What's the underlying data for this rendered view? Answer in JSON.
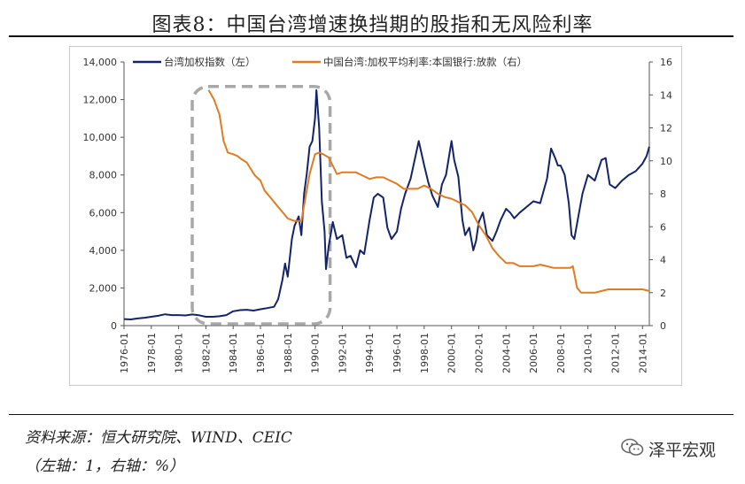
{
  "title": "图表8：中国台湾增速换挡期的股指和无风险利率",
  "source": "资料来源：恒大研究院、WIND、CEIC",
  "note": "（左轴：1，右轴：%）",
  "watermark": "泽平宏观",
  "colors": {
    "stock": "#14246a",
    "rate": "#e07b22",
    "highlight": "#a8a8a8",
    "axis": "#555555"
  },
  "chart_data": {
    "type": "line",
    "legend_position": "top",
    "grid": false,
    "x_ticks": [
      "1976-01",
      "1978-01",
      "1980-01",
      "1982-01",
      "1984-01",
      "1986-01",
      "1988-01",
      "1990-01",
      "1992-01",
      "1994-01",
      "1996-01",
      "1998-01",
      "2000-01",
      "2002-01",
      "2004-01",
      "2006-01",
      "2008-01",
      "2010-01",
      "2012-01",
      "2014-01"
    ],
    "xlim": [
      1976.0,
      2014.5
    ],
    "y_left": {
      "ylim": [
        0,
        14000
      ],
      "ticks": [
        "0",
        "2,000",
        "4,000",
        "6,000",
        "8,000",
        "10,000",
        "12,000",
        "14,000"
      ]
    },
    "y_right": {
      "ylim": [
        0,
        16
      ],
      "ticks": [
        "0",
        "2",
        "4",
        "6",
        "8",
        "10",
        "12",
        "14",
        "16"
      ]
    },
    "highlight_box": {
      "x_range": [
        1981.0,
        1991.1
      ],
      "y_range": [
        0,
        12600
      ]
    },
    "series": [
      {
        "name": "台湾加权指数（左）",
        "axis": "left",
        "x": [
          1976.0,
          1976.5,
          1977.0,
          1977.5,
          1978.0,
          1978.5,
          1979.0,
          1979.5,
          1980.0,
          1980.5,
          1981.0,
          1981.5,
          1982.0,
          1982.5,
          1983.0,
          1983.5,
          1984.0,
          1984.5,
          1985.0,
          1985.5,
          1986.0,
          1986.5,
          1987.0,
          1987.3,
          1987.6,
          1987.8,
          1988.0,
          1988.3,
          1988.5,
          1988.8,
          1989.0,
          1989.2,
          1989.4,
          1989.6,
          1989.8,
          1990.0,
          1990.1,
          1990.3,
          1990.5,
          1990.7,
          1990.8,
          1991.0,
          1991.3,
          1991.6,
          1992.0,
          1992.3,
          1992.6,
          1993.0,
          1993.3,
          1993.6,
          1994.0,
          1994.3,
          1994.6,
          1995.0,
          1995.3,
          1995.6,
          1996.0,
          1996.3,
          1996.6,
          1997.0,
          1997.3,
          1997.6,
          1998.0,
          1998.3,
          1998.6,
          1999.0,
          1999.3,
          1999.6,
          2000.0,
          2000.2,
          2000.5,
          2000.8,
          2001.0,
          2001.3,
          2001.6,
          2001.8,
          2002.0,
          2002.3,
          2002.6,
          2003.0,
          2003.3,
          2003.6,
          2004.0,
          2004.3,
          2004.6,
          2005.0,
          2005.5,
          2006.0,
          2006.5,
          2007.0,
          2007.3,
          2007.6,
          2007.8,
          2008.0,
          2008.3,
          2008.6,
          2008.8,
          2009.0,
          2009.3,
          2009.6,
          2010.0,
          2010.5,
          2011.0,
          2011.3,
          2011.6,
          2012.0,
          2012.5,
          2013.0,
          2013.5,
          2014.0,
          2014.3,
          2014.5
        ],
        "y": [
          350,
          330,
          380,
          420,
          470,
          520,
          600,
          560,
          560,
          540,
          590,
          550,
          470,
          470,
          500,
          560,
          760,
          820,
          840,
          800,
          870,
          930,
          1000,
          1400,
          2400,
          3300,
          2600,
          4600,
          5300,
          5800,
          4800,
          7000,
          8100,
          9500,
          9800,
          11000,
          12500,
          10500,
          6600,
          5000,
          3000,
          4200,
          5500,
          4600,
          4800,
          3600,
          3700,
          3100,
          4000,
          3800,
          5600,
          6800,
          7000,
          6800,
          5200,
          4600,
          5000,
          6200,
          7000,
          7800,
          8800,
          9800,
          8500,
          7600,
          6900,
          6300,
          7500,
          8000,
          9800,
          8800,
          7900,
          5600,
          4800,
          5200,
          4000,
          4500,
          5500,
          6000,
          4800,
          4500,
          5000,
          5600,
          6200,
          6000,
          5700,
          6000,
          6300,
          6600,
          6500,
          7800,
          9400,
          8900,
          8500,
          8500,
          8000,
          6500,
          4800,
          4600,
          5800,
          7000,
          8000,
          7700,
          8800,
          8900,
          7500,
          7300,
          7700,
          8000,
          8200,
          8600,
          9000,
          9500
        ]
      },
      {
        "name": "中国台湾:加权平均利率:本国银行:放款（右）",
        "axis": "right",
        "x": [
          1982.2,
          1982.6,
          1983.0,
          1983.3,
          1983.6,
          1984.0,
          1984.3,
          1984.6,
          1985.0,
          1985.3,
          1985.6,
          1986.0,
          1986.3,
          1986.6,
          1987.0,
          1987.3,
          1987.6,
          1988.0,
          1988.5,
          1988.8,
          1989.0,
          1989.3,
          1989.6,
          1989.9,
          1990.0,
          1990.3,
          1990.6,
          1991.0,
          1991.3,
          1991.6,
          1992.0,
          1992.5,
          1993.0,
          1993.5,
          1994.0,
          1994.5,
          1995.0,
          1995.5,
          1996.0,
          1996.5,
          1997.0,
          1997.5,
          1998.0,
          1998.5,
          1999.0,
          1999.5,
          2000.0,
          2000.5,
          2001.0,
          2001.5,
          2002.0,
          2002.5,
          2003.0,
          2003.5,
          2004.0,
          2004.5,
          2005.0,
          2005.5,
          2006.0,
          2006.5,
          2007.0,
          2007.5,
          2008.0,
          2008.4,
          2008.7,
          2008.9,
          2009.2,
          2009.5,
          2010.0,
          2010.5,
          2011.0,
          2011.5,
          2012.0,
          2012.5,
          2013.0,
          2013.5,
          2014.0,
          2014.5
        ],
        "y": [
          14.3,
          13.7,
          12.8,
          11.2,
          10.5,
          10.4,
          10.3,
          10.1,
          9.9,
          9.5,
          9.1,
          8.8,
          8.2,
          7.9,
          7.5,
          7.2,
          6.9,
          6.5,
          6.35,
          6.35,
          6.35,
          7.8,
          9.2,
          10.1,
          10.4,
          10.5,
          10.4,
          10.2,
          9.7,
          9.2,
          9.3,
          9.3,
          9.3,
          9.1,
          8.9,
          9.0,
          9.0,
          8.8,
          8.6,
          8.3,
          8.3,
          8.3,
          8.5,
          8.3,
          8.0,
          7.8,
          7.7,
          7.5,
          7.3,
          6.9,
          6.1,
          5.5,
          4.7,
          4.2,
          3.8,
          3.8,
          3.6,
          3.6,
          3.6,
          3.7,
          3.6,
          3.5,
          3.5,
          3.5,
          3.5,
          3.6,
          2.3,
          2.0,
          2.0,
          2.0,
          2.1,
          2.2,
          2.2,
          2.2,
          2.2,
          2.2,
          2.2,
          2.1
        ]
      }
    ]
  }
}
